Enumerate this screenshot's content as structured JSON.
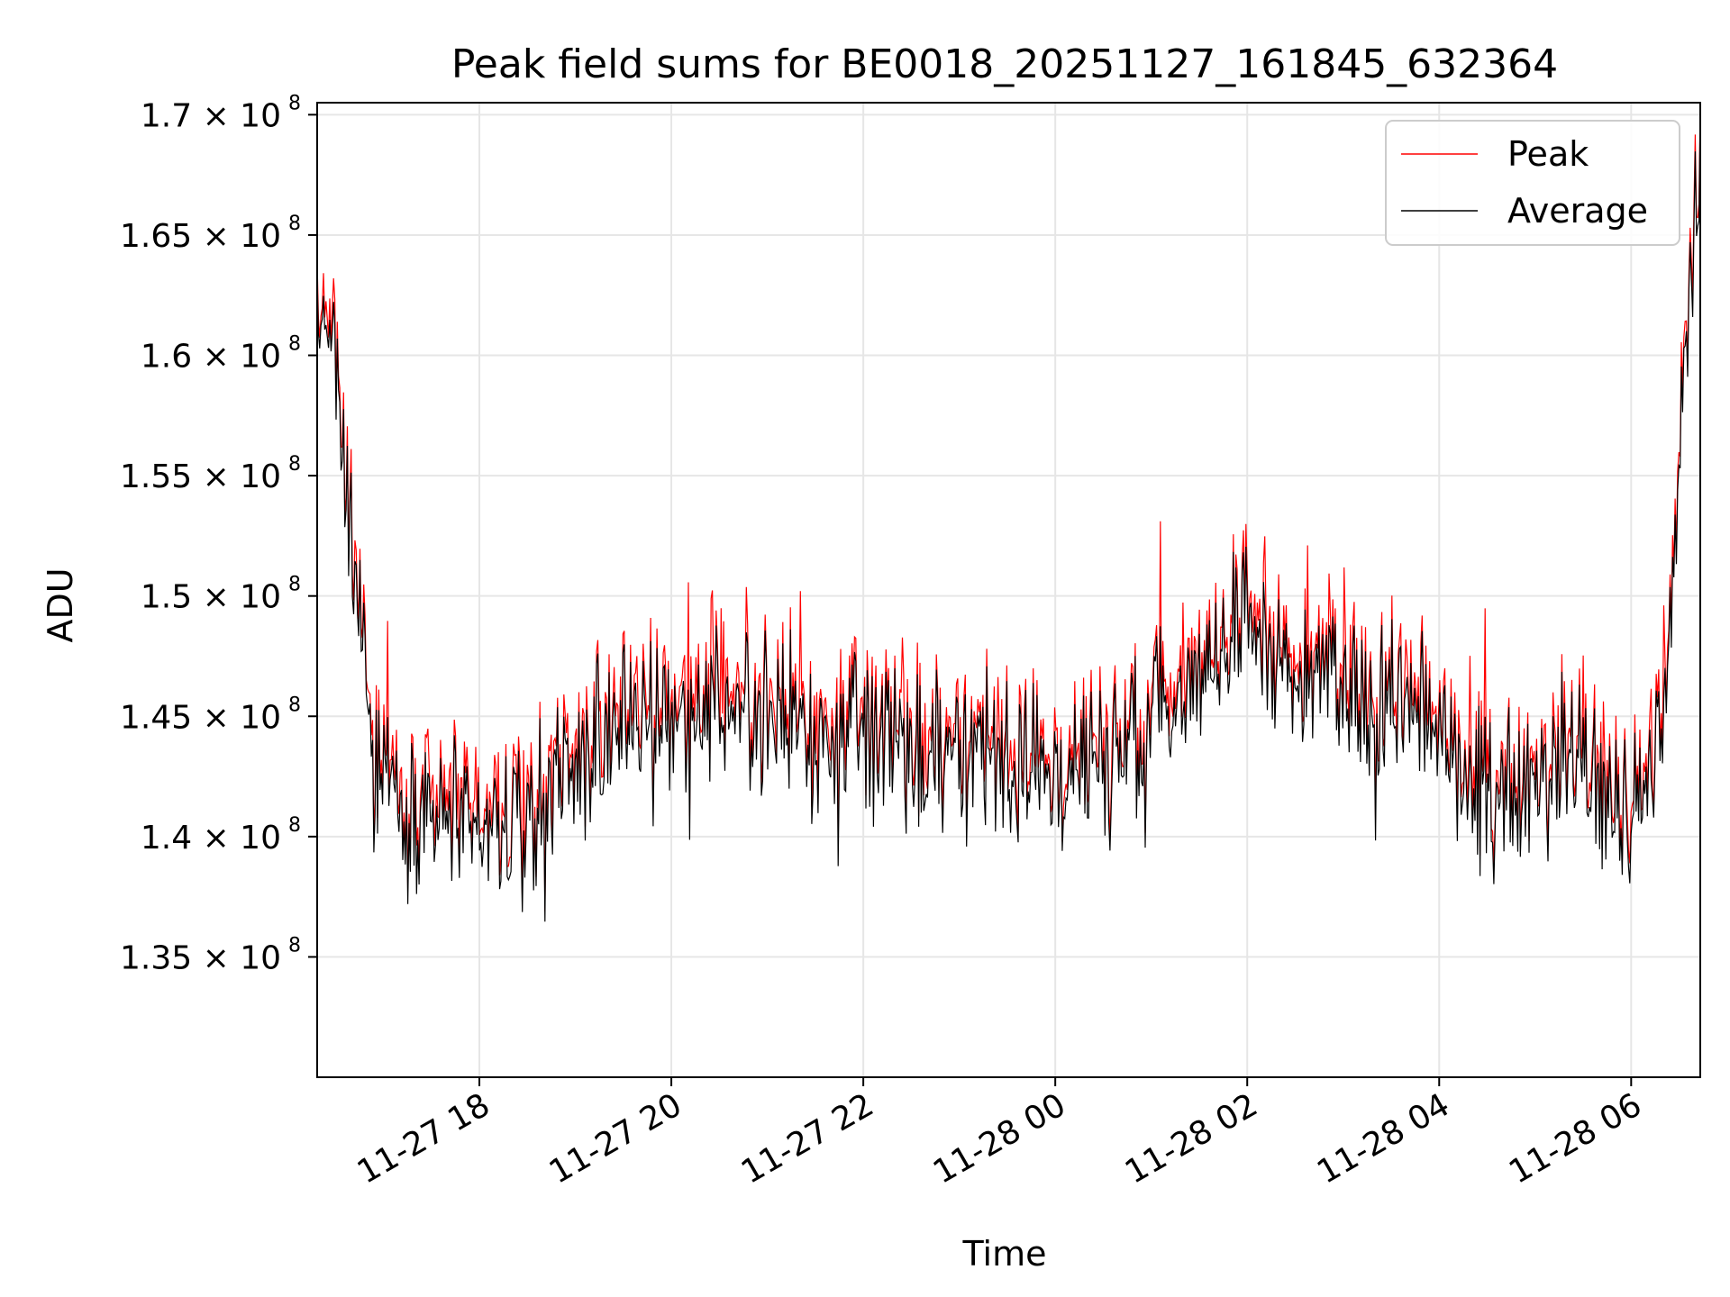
{
  "chart_data": {
    "type": "line",
    "title": "Peak field sums for BE0018_20251127_161845_632364",
    "xlabel": "Time",
    "ylabel": "ADU",
    "x_start_hour": 16.31,
    "x_end_hour": 30.72,
    "xlim_hours": [
      16.31,
      30.72
    ],
    "ylim": [
      130000000,
      170500000
    ],
    "grid": true,
    "legend_position": "upper-right",
    "x_ticks": [
      {
        "hour": 18,
        "label": "11-27 18"
      },
      {
        "hour": 20,
        "label": "11-27 20"
      },
      {
        "hour": 22,
        "label": "11-27 22"
      },
      {
        "hour": 24,
        "label": "11-28 00"
      },
      {
        "hour": 26,
        "label": "11-28 02"
      },
      {
        "hour": 28,
        "label": "11-28 04"
      },
      {
        "hour": 30,
        "label": "11-28 06"
      }
    ],
    "y_ticks": [
      {
        "value": 135000000,
        "label": "1.35 × 10",
        "exp": "8"
      },
      {
        "value": 140000000,
        "label": "1.4 × 10",
        "exp": "8"
      },
      {
        "value": 145000000,
        "label": "1.45 × 10",
        "exp": "8"
      },
      {
        "value": 150000000,
        "label": "1.5 × 10",
        "exp": "8"
      },
      {
        "value": 155000000,
        "label": "1.55 × 10",
        "exp": "8"
      },
      {
        "value": 160000000,
        "label": "1.6 × 10",
        "exp": "8"
      },
      {
        "value": 165000000,
        "label": "1.65 × 10",
        "exp": "8"
      },
      {
        "value": 170000000,
        "label": "1.7 × 10",
        "exp": "8"
      }
    ],
    "series": [
      {
        "name": "Peak",
        "color": "#ff0000"
      },
      {
        "name": "Average",
        "color": "#000000"
      }
    ],
    "trend_anchors": [
      [
        16.31,
        161500000
      ],
      [
        16.5,
        159500000
      ],
      [
        16.7,
        150000000
      ],
      [
        16.9,
        144000000
      ],
      [
        17.2,
        141500000
      ],
      [
        17.6,
        141000000
      ],
      [
        18.0,
        139500000
      ],
      [
        18.5,
        140500000
      ],
      [
        19.0,
        143500000
      ],
      [
        19.5,
        144500000
      ],
      [
        20.0,
        145000000
      ],
      [
        20.5,
        145800000
      ],
      [
        21.0,
        145500000
      ],
      [
        21.5,
        144500000
      ],
      [
        22.0,
        144000000
      ],
      [
        22.5,
        143800000
      ],
      [
        23.0,
        143500000
      ],
      [
        23.5,
        143200000
      ],
      [
        24.0,
        143000000
      ],
      [
        24.5,
        143200000
      ],
      [
        25.0,
        145000000
      ],
      [
        25.5,
        147000000
      ],
      [
        26.0,
        148800000
      ],
      [
        26.5,
        146800000
      ],
      [
        27.0,
        145500000
      ],
      [
        27.5,
        146000000
      ],
      [
        28.0,
        144500000
      ],
      [
        28.3,
        141500000
      ],
      [
        28.8,
        142500000
      ],
      [
        29.2,
        143500000
      ],
      [
        29.6,
        142500000
      ],
      [
        30.0,
        141000000
      ],
      [
        30.3,
        143500000
      ],
      [
        30.45,
        150000000
      ],
      [
        30.55,
        160000000
      ],
      [
        30.65,
        166000000
      ],
      [
        30.72,
        167000000
      ]
    ],
    "noise_amplitude": 2500000,
    "peak_offset": 700000,
    "n_points": 1100
  }
}
